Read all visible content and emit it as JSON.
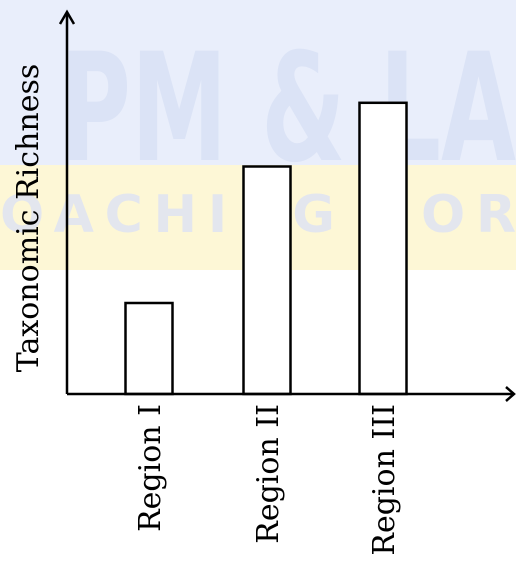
{
  "watermark": {
    "line1": "PM & LA",
    "line2": "OACHING FOR",
    "color_top": "#e9eefb",
    "color_bottom": "#fdf7d6"
  },
  "chart_data": {
    "type": "bar",
    "categories": [
      "Region I",
      "Region II",
      "Region III"
    ],
    "values": [
      1.0,
      2.5,
      3.2
    ],
    "ylabel": "Taxonomic Richness",
    "xlabel": "",
    "ylim": [
      0,
      4.2
    ],
    "grid": false,
    "bar_fill": "#ffffff",
    "bar_stroke": "#000000"
  }
}
